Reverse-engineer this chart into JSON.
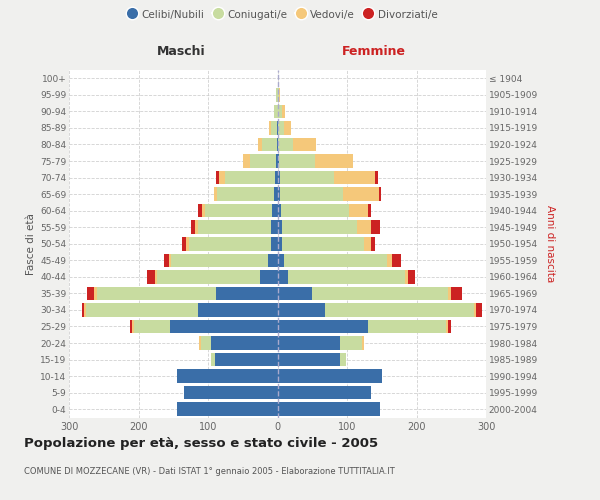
{
  "age_groups": [
    "0-4",
    "5-9",
    "10-14",
    "15-19",
    "20-24",
    "25-29",
    "30-34",
    "35-39",
    "40-44",
    "45-49",
    "50-54",
    "55-59",
    "60-64",
    "65-69",
    "70-74",
    "75-79",
    "80-84",
    "85-89",
    "90-94",
    "95-99",
    "100+"
  ],
  "birth_years": [
    "2000-2004",
    "1995-1999",
    "1990-1994",
    "1985-1989",
    "1980-1984",
    "1975-1979",
    "1970-1974",
    "1965-1969",
    "1960-1964",
    "1955-1959",
    "1950-1954",
    "1945-1949",
    "1940-1944",
    "1935-1939",
    "1930-1934",
    "1925-1929",
    "1920-1924",
    "1915-1919",
    "1910-1914",
    "1905-1909",
    "≤ 1904"
  ],
  "males_celibi": [
    145,
    135,
    145,
    90,
    95,
    155,
    115,
    88,
    25,
    13,
    10,
    9,
    8,
    5,
    4,
    2,
    1,
    1,
    0,
    0,
    0
  ],
  "males_coniugati": [
    0,
    0,
    0,
    5,
    15,
    52,
    160,
    172,
    148,
    140,
    118,
    105,
    97,
    82,
    72,
    38,
    22,
    8,
    5,
    2,
    0
  ],
  "males_vedovi": [
    0,
    0,
    0,
    0,
    3,
    3,
    3,
    4,
    3,
    3,
    3,
    4,
    4,
    5,
    8,
    10,
    5,
    3,
    0,
    0,
    0
  ],
  "males_divorziati": [
    0,
    0,
    0,
    0,
    0,
    2,
    3,
    10,
    12,
    8,
    7,
    7,
    5,
    0,
    5,
    0,
    0,
    0,
    0,
    0,
    0
  ],
  "females_nubili": [
    148,
    135,
    150,
    90,
    90,
    130,
    68,
    50,
    15,
    10,
    7,
    7,
    5,
    4,
    4,
    2,
    1,
    1,
    1,
    0,
    0
  ],
  "females_coniugate": [
    0,
    0,
    0,
    8,
    32,
    112,
    215,
    195,
    168,
    148,
    118,
    108,
    98,
    90,
    78,
    52,
    22,
    8,
    5,
    2,
    0
  ],
  "females_vedove": [
    0,
    0,
    0,
    0,
    3,
    3,
    3,
    5,
    5,
    7,
    10,
    20,
    27,
    52,
    58,
    55,
    32,
    10,
    5,
    2,
    0
  ],
  "females_divorziate": [
    0,
    0,
    0,
    0,
    0,
    5,
    8,
    15,
    10,
    12,
    5,
    12,
    5,
    3,
    5,
    0,
    0,
    0,
    0,
    0,
    0
  ],
  "color_celibi": "#3a6ea8",
  "color_coniugati": "#c8dca0",
  "color_vedovi": "#f5c87a",
  "color_divorziati": "#cc2222",
  "title": "Popolazione per età, sesso e stato civile - 2005",
  "subtitle": "COMUNE DI MOZZECANE (VR) - Dati ISTAT 1° gennaio 2005 - Elaborazione TUTTITALIA.IT",
  "bg_color": "#f0f0ee",
  "plot_bg": "#ffffff",
  "grid_color": "#cccccc",
  "xlim": 300
}
